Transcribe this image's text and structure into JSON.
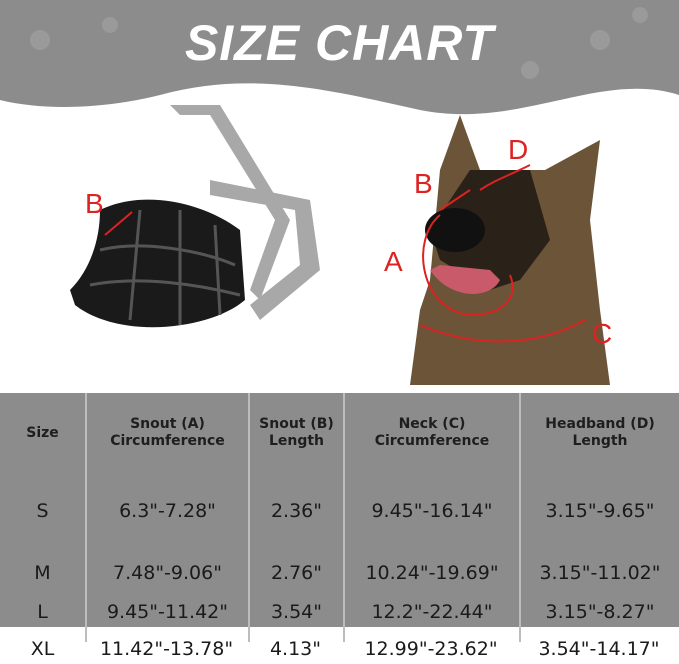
{
  "title": "SIZE CHART",
  "diagram_labels": {
    "muzzle": [
      "B"
    ],
    "dog": [
      "A",
      "B",
      "C",
      "D"
    ]
  },
  "colors": {
    "banner": "#8c8c8c",
    "table": "#8c8c8c",
    "arrows": "#d22222"
  },
  "table": {
    "headers": [
      [
        "Size",
        ""
      ],
      [
        "Snout (A)",
        "Circumference"
      ],
      [
        "Snout (B)",
        "Length"
      ],
      [
        "Neck (C)",
        "Circumference"
      ],
      [
        "Headband (D)",
        "Length"
      ]
    ],
    "rows": [
      [
        "S",
        "6.3\"-7.28\"",
        "2.36\"",
        "9.45\"-16.14\"",
        "3.15\"-9.65\""
      ],
      [
        "M",
        "7.48\"-9.06\"",
        "2.76\"",
        "10.24\"-19.69\"",
        "3.15\"-11.02\""
      ],
      [
        "L",
        "9.45\"-11.42\"",
        "3.54\"",
        "12.2\"-22.44\"",
        "3.15\"-8.27\""
      ],
      [
        "XL",
        "11.42\"-13.78\"",
        "4.13\"",
        "12.99\"-23.62\"",
        "3.54\"-14.17\""
      ]
    ]
  }
}
